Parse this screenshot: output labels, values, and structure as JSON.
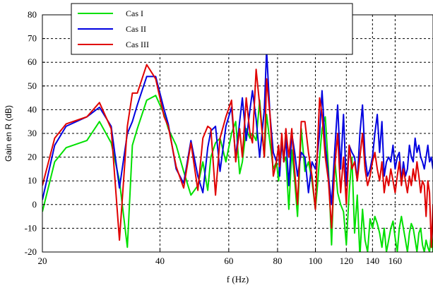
{
  "chart_data": {
    "type": "line",
    "title": "",
    "xlabel": "f (Hz)",
    "ylabel": "Gain en R (dB)",
    "xscale": "log",
    "xlim": [
      20,
      200
    ],
    "ylim": [
      -20,
      80
    ],
    "grid": true,
    "legend_position": "top-left",
    "xticks": [
      20,
      40,
      60,
      80,
      100,
      120,
      140,
      160
    ],
    "xtick_labels": [
      "20",
      "40",
      "60",
      "80",
      "100",
      "120",
      "140",
      "160"
    ],
    "yticks": [
      -20,
      -10,
      0,
      10,
      20,
      30,
      40,
      50,
      60,
      70,
      80
    ],
    "ytick_labels": [
      "-20",
      "-10",
      "0",
      "10",
      "20",
      "30",
      "40",
      "50",
      "60",
      "70",
      "80"
    ],
    "series": [
      {
        "name": "Cas  I",
        "color": "#00e000",
        "x": [
          20,
          21.5,
          23,
          26,
          28,
          30,
          31.5,
          33,
          34,
          35,
          37,
          39,
          41,
          42,
          44,
          46,
          48,
          50,
          51.5,
          53,
          54,
          55.5,
          57,
          59,
          61,
          62.5,
          64,
          65,
          66.5,
          68,
          69,
          70.5,
          72,
          74,
          75,
          76.5,
          78,
          79.5,
          80.5,
          81,
          82,
          83,
          84,
          85.5,
          87,
          88.5,
          90,
          92,
          94,
          96,
          98,
          100,
          101,
          102.5,
          104,
          106,
          108,
          110,
          112,
          114,
          116,
          118,
          120,
          122,
          124,
          126,
          128,
          130,
          132,
          134,
          136,
          138,
          140,
          142,
          144,
          146,
          148,
          150,
          152,
          154,
          156,
          158,
          160,
          162,
          164,
          166,
          168,
          170,
          172,
          174,
          176,
          178,
          180,
          182,
          184,
          186,
          188,
          190,
          192,
          194,
          196,
          198,
          200
        ],
        "y": [
          -3,
          18,
          24,
          27,
          35,
          26,
          10,
          -18,
          25,
          32,
          44,
          46,
          38,
          32,
          25,
          14,
          4,
          8,
          18,
          6,
          20,
          26,
          28,
          18,
          30,
          35,
          13,
          18,
          32,
          28,
          30,
          27,
          44,
          20,
          38,
          26,
          15,
          18,
          10,
          19,
          26,
          18,
          20,
          -2,
          23,
          10,
          -5,
          32,
          14,
          18,
          10,
          -2,
          6,
          20,
          32,
          37,
          15,
          -17,
          20,
          5,
          0,
          -3,
          -17,
          5,
          20,
          -12,
          4,
          -22,
          -2,
          -15,
          -20,
          -6,
          -10,
          -5,
          -8,
          -12,
          -18,
          -10,
          -20,
          -15,
          -10,
          -7,
          -14,
          -20,
          -10,
          -5,
          -10,
          -15,
          -20,
          -12,
          -8,
          -10,
          -15,
          -20,
          -12,
          -10,
          -17,
          -20,
          -15,
          -18,
          -20,
          -12,
          -20
        ]
      },
      {
        "name": "Cas  II",
        "color": "#0000e0",
        "x": [
          20,
          21.5,
          23,
          26,
          28,
          30,
          31.5,
          33,
          34,
          35,
          37,
          39,
          41,
          42,
          44,
          46,
          48,
          50,
          51.5,
          53,
          54,
          55.5,
          57,
          59,
          61,
          62.5,
          64,
          65,
          66.5,
          68,
          69,
          70.5,
          72,
          74,
          75,
          76.5,
          78,
          79.5,
          80.5,
          81,
          82,
          83,
          84,
          85.5,
          87,
          88.5,
          90,
          92,
          94,
          96,
          98,
          100,
          101,
          102.5,
          104,
          106,
          108,
          110,
          112,
          114,
          116,
          118,
          120,
          122,
          124,
          126,
          128,
          130,
          132,
          134,
          136,
          138,
          140,
          142,
          144,
          146,
          148,
          150,
          152,
          154,
          156,
          158,
          160,
          162,
          164,
          166,
          168,
          170,
          172,
          174,
          176,
          178,
          180,
          182,
          184,
          186,
          188,
          190,
          192,
          194,
          196,
          198,
          200
        ],
        "y": [
          2,
          25,
          33,
          37,
          41,
          33,
          7,
          30,
          35,
          42,
          54,
          54,
          40,
          34,
          15,
          9,
          27,
          12,
          5,
          24,
          31,
          33,
          14,
          33,
          41,
          20,
          35,
          45,
          27,
          40,
          48,
          36,
          20,
          40,
          65,
          38,
          22,
          18,
          25,
          12,
          27,
          18,
          28,
          8,
          30,
          22,
          12,
          22,
          20,
          5,
          18,
          15,
          20,
          30,
          48,
          25,
          12,
          0,
          22,
          42,
          15,
          38,
          8,
          25,
          22,
          20,
          10,
          30,
          42,
          20,
          12,
          15,
          20,
          30,
          38,
          22,
          35,
          12,
          18,
          20,
          18,
          25,
          15,
          20,
          22,
          10,
          18,
          12,
          15,
          25,
          20,
          18,
          28,
          22,
          25,
          20,
          18,
          15,
          20,
          25,
          18,
          20,
          15
        ]
      },
      {
        "name": "Cas  III",
        "color": "#e00000",
        "x": [
          20,
          21.5,
          23,
          26,
          28,
          30,
          31.5,
          33,
          34,
          35,
          37,
          39,
          41,
          42,
          44,
          46,
          48,
          50,
          51.5,
          53,
          54,
          55.5,
          57,
          59,
          61,
          62.5,
          64,
          65,
          66.5,
          68,
          69,
          70.5,
          72,
          74,
          75,
          76.5,
          78,
          79.5,
          80.5,
          81,
          82,
          83,
          84,
          85.5,
          87,
          88.5,
          90,
          92,
          94,
          96,
          98,
          100,
          101,
          102.5,
          104,
          106,
          108,
          110,
          112,
          114,
          116,
          118,
          120,
          122,
          124,
          126,
          128,
          130,
          132,
          134,
          136,
          138,
          140,
          142,
          144,
          146,
          148,
          150,
          152,
          154,
          156,
          158,
          160,
          162,
          164,
          166,
          168,
          170,
          172,
          174,
          176,
          178,
          180,
          182,
          184,
          186,
          188,
          190,
          192,
          194,
          196,
          198,
          200
        ],
        "y": [
          8,
          28,
          34,
          37,
          43,
          32,
          -15,
          33,
          47,
          47,
          59,
          53,
          37,
          33,
          16,
          7,
          26,
          6,
          28,
          33,
          32,
          4,
          28,
          37,
          44,
          18,
          32,
          20,
          45,
          30,
          26,
          57,
          42,
          20,
          53,
          38,
          12,
          18,
          25,
          16,
          30,
          18,
          32,
          20,
          32,
          14,
          0,
          35,
          35,
          22,
          12,
          -2,
          20,
          45,
          38,
          20,
          10,
          -10,
          15,
          30,
          5,
          20,
          0,
          25,
          15,
          18,
          10,
          20,
          30,
          15,
          8,
          12,
          18,
          22,
          15,
          10,
          18,
          5,
          12,
          8,
          15,
          10,
          5,
          12,
          18,
          8,
          15,
          10,
          5,
          12,
          8,
          15,
          10,
          18,
          12,
          5,
          10,
          8,
          -5,
          10,
          5,
          -18,
          0
        ]
      }
    ]
  }
}
